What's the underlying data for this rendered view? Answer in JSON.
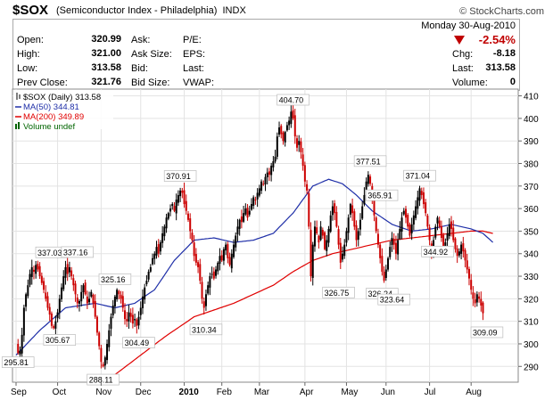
{
  "header": {
    "symbol": "$SOX",
    "name": "(Semiconductor Index - Philadelphia)",
    "exchange": "INDX",
    "site": "© StockCharts.com"
  },
  "quote": {
    "date": "Monday  30-Aug-2010",
    "change_pct": "-2.54%",
    "rows_left": [
      {
        "label": "Open:",
        "value": "320.99"
      },
      {
        "label": "High:",
        "value": "321.00"
      },
      {
        "label": "Low:",
        "value": "313.58"
      },
      {
        "label": "Prev Close:",
        "value": "321.76"
      }
    ],
    "rows_mid": [
      "Ask:",
      "Ask Size:",
      "Bid:",
      "Bid Size:"
    ],
    "rows_mid2": [
      "P/E:",
      "EPS:",
      "Last:",
      "VWAP:"
    ],
    "rows_right": [
      {
        "label": "Chg:",
        "value": "-8.18"
      },
      {
        "label": "Last:",
        "value": "313.58"
      },
      {
        "label": "Volume:",
        "value": "0"
      }
    ]
  },
  "colors": {
    "up": "#000000",
    "down": "#cc0000",
    "ma50": "#1f2fa8",
    "ma200": "#e00000",
    "grid": "#e3e3e3"
  },
  "chart_data": {
    "type": "line",
    "legend": [
      {
        "text": "$SOX (Daily) 313.58",
        "color": "#000000"
      },
      {
        "text": "MA(50) 344.81",
        "color": "#1f2fa8"
      },
      {
        "text": "MA(200) 349.89",
        "color": "#e00000"
      },
      {
        "text": "Volume undef",
        "color": "#006400"
      }
    ],
    "ylim": [
      283,
      413
    ],
    "y_ticks": [
      290,
      300,
      310,
      320,
      330,
      340,
      350,
      360,
      370,
      380,
      390,
      400,
      410
    ],
    "xlim": [
      0,
      252
    ],
    "x_ticks": [
      {
        "label": "Sep",
        "x": 0
      },
      {
        "label": "Oct",
        "x": 21
      },
      {
        "label": "Nov",
        "x": 43
      },
      {
        "label": "Dec",
        "x": 63
      },
      {
        "label": "2010",
        "x": 85,
        "bold": true
      },
      {
        "label": "Feb",
        "x": 104
      },
      {
        "label": "Mar",
        "x": 123
      },
      {
        "label": "Apr",
        "x": 146
      },
      {
        "label": "May",
        "x": 167
      },
      {
        "label": "Jun",
        "x": 187
      },
      {
        "label": "Jul",
        "x": 209
      },
      {
        "label": "Aug",
        "x": 230
      }
    ],
    "price_anchors": [
      [
        0,
        300
      ],
      [
        1,
        296
      ],
      [
        2,
        297
      ],
      [
        3,
        304
      ],
      [
        4,
        316
      ],
      [
        5,
        322
      ],
      [
        6,
        326
      ],
      [
        7,
        331
      ],
      [
        8,
        334
      ],
      [
        9,
        332
      ],
      [
        10,
        335
      ],
      [
        11,
        333
      ],
      [
        12,
        330
      ],
      [
        13,
        327
      ],
      [
        14,
        324
      ],
      [
        15,
        320
      ],
      [
        16,
        316
      ],
      [
        17,
        313
      ],
      [
        18,
        308
      ],
      [
        19,
        307
      ],
      [
        20,
        310
      ],
      [
        21,
        314
      ],
      [
        22,
        320
      ],
      [
        23,
        325
      ],
      [
        24,
        330
      ],
      [
        25,
        334
      ],
      [
        26,
        331
      ],
      [
        27,
        334
      ],
      [
        28,
        330
      ],
      [
        29,
        326
      ],
      [
        30,
        322
      ],
      [
        31,
        318
      ],
      [
        32,
        319
      ],
      [
        33,
        323
      ],
      [
        34,
        326
      ],
      [
        35,
        322
      ],
      [
        36,
        318
      ],
      [
        37,
        320
      ],
      [
        38,
        323
      ],
      [
        39,
        318
      ],
      [
        40,
        312
      ],
      [
        41,
        305
      ],
      [
        42,
        299
      ],
      [
        43,
        292
      ],
      [
        44,
        290
      ],
      [
        45,
        294
      ],
      [
        46,
        300
      ],
      [
        47,
        306
      ],
      [
        48,
        312
      ],
      [
        49,
        317
      ],
      [
        50,
        321
      ],
      [
        51,
        324
      ],
      [
        52,
        322
      ],
      [
        53,
        320
      ],
      [
        54,
        316
      ],
      [
        55,
        311
      ],
      [
        56,
        310
      ],
      [
        57,
        314
      ],
      [
        58,
        312
      ],
      [
        59,
        309
      ],
      [
        60,
        311
      ],
      [
        61,
        308
      ],
      [
        62,
        312
      ],
      [
        63,
        316
      ],
      [
        64,
        321
      ],
      [
        65,
        325
      ],
      [
        66,
        328
      ],
      [
        67,
        332
      ],
      [
        68,
        334
      ],
      [
        69,
        338
      ],
      [
        70,
        340
      ],
      [
        71,
        343
      ],
      [
        72,
        340
      ],
      [
        73,
        345
      ],
      [
        74,
        349
      ],
      [
        75,
        352
      ],
      [
        76,
        356
      ],
      [
        77,
        358
      ],
      [
        78,
        360
      ],
      [
        79,
        362
      ],
      [
        80,
        359
      ],
      [
        81,
        364
      ],
      [
        82,
        366
      ],
      [
        83,
        368
      ],
      [
        84,
        367
      ],
      [
        85,
        362
      ],
      [
        86,
        359
      ],
      [
        87,
        355
      ],
      [
        88,
        350
      ],
      [
        89,
        346
      ],
      [
        90,
        339
      ],
      [
        91,
        336
      ],
      [
        92,
        334
      ],
      [
        93,
        328
      ],
      [
        94,
        320
      ],
      [
        95,
        316
      ],
      [
        96,
        322
      ],
      [
        97,
        326
      ],
      [
        98,
        330
      ],
      [
        99,
        331
      ],
      [
        100,
        329
      ],
      [
        101,
        333
      ],
      [
        102,
        336
      ],
      [
        103,
        339
      ],
      [
        104,
        337
      ],
      [
        105,
        342
      ],
      [
        106,
        344
      ],
      [
        107,
        338
      ],
      [
        108,
        335
      ],
      [
        109,
        340
      ],
      [
        110,
        344
      ],
      [
        111,
        348
      ],
      [
        112,
        352
      ],
      [
        113,
        355
      ],
      [
        114,
        354
      ],
      [
        115,
        358
      ],
      [
        116,
        360
      ],
      [
        117,
        356
      ],
      [
        118,
        359
      ],
      [
        119,
        362
      ],
      [
        120,
        365
      ],
      [
        121,
        364
      ],
      [
        122,
        367
      ],
      [
        123,
        369
      ],
      [
        124,
        372
      ],
      [
        125,
        371
      ],
      [
        126,
        374
      ],
      [
        127,
        376
      ],
      [
        128,
        375
      ],
      [
        129,
        379
      ],
      [
        130,
        381
      ],
      [
        131,
        383
      ],
      [
        132,
        392
      ],
      [
        133,
        396
      ],
      [
        134,
        393
      ],
      [
        135,
        390
      ],
      [
        136,
        394
      ],
      [
        137,
        397
      ],
      [
        138,
        399
      ],
      [
        139,
        403
      ],
      [
        140,
        400
      ],
      [
        141,
        392
      ],
      [
        142,
        387
      ],
      [
        143,
        390
      ],
      [
        144,
        385
      ],
      [
        145,
        379
      ],
      [
        146,
        372
      ],
      [
        147,
        368
      ],
      [
        148,
        352
      ],
      [
        149,
        330
      ],
      [
        150,
        344
      ],
      [
        151,
        352
      ],
      [
        152,
        349
      ],
      [
        153,
        345
      ],
      [
        154,
        352
      ],
      [
        155,
        348
      ],
      [
        156,
        342
      ],
      [
        157,
        346
      ],
      [
        158,
        351
      ],
      [
        159,
        357
      ],
      [
        160,
        361
      ],
      [
        161,
        358
      ],
      [
        162,
        352
      ],
      [
        163,
        344
      ],
      [
        164,
        336
      ],
      [
        165,
        340
      ],
      [
        166,
        344
      ],
      [
        167,
        350
      ],
      [
        168,
        356
      ],
      [
        169,
        362
      ],
      [
        170,
        358
      ],
      [
        171,
        352
      ],
      [
        172,
        346
      ],
      [
        173,
        350
      ],
      [
        174,
        355
      ],
      [
        175,
        361
      ],
      [
        176,
        366
      ],
      [
        177,
        372
      ],
      [
        178,
        375
      ],
      [
        179,
        371
      ],
      [
        180,
        364
      ],
      [
        181,
        357
      ],
      [
        182,
        350
      ],
      [
        183,
        344
      ],
      [
        184,
        338
      ],
      [
        185,
        332
      ],
      [
        186,
        328
      ],
      [
        187,
        333
      ],
      [
        188,
        338
      ],
      [
        189,
        343
      ],
      [
        190,
        347
      ],
      [
        191,
        344
      ],
      [
        192,
        340
      ],
      [
        193,
        346
      ],
      [
        194,
        351
      ],
      [
        195,
        356
      ],
      [
        196,
        359
      ],
      [
        197,
        356
      ],
      [
        198,
        352
      ],
      [
        199,
        348
      ],
      [
        200,
        353
      ],
      [
        201,
        357
      ],
      [
        202,
        361
      ],
      [
        203,
        365
      ],
      [
        204,
        369
      ],
      [
        205,
        366
      ],
      [
        206,
        362
      ],
      [
        207,
        358
      ],
      [
        208,
        352
      ],
      [
        209,
        346
      ],
      [
        210,
        341
      ],
      [
        211,
        346
      ],
      [
        212,
        352
      ],
      [
        213,
        356
      ],
      [
        214,
        352
      ],
      [
        215,
        347
      ],
      [
        216,
        343
      ],
      [
        217,
        345
      ],
      [
        218,
        349
      ],
      [
        219,
        353
      ],
      [
        220,
        351
      ],
      [
        221,
        346
      ],
      [
        222,
        342
      ],
      [
        223,
        339
      ],
      [
        224,
        341
      ],
      [
        225,
        344
      ],
      [
        226,
        341
      ],
      [
        227,
        337
      ],
      [
        228,
        333
      ],
      [
        229,
        329
      ],
      [
        230,
        324
      ],
      [
        231,
        320
      ],
      [
        232,
        318
      ],
      [
        233,
        322
      ],
      [
        234,
        320
      ],
      [
        235,
        317
      ],
      [
        236,
        313.58
      ]
    ],
    "ma50_anchors": [
      [
        0,
        295
      ],
      [
        12,
        306
      ],
      [
        25,
        316
      ],
      [
        40,
        318
      ],
      [
        50,
        316
      ],
      [
        60,
        318
      ],
      [
        70,
        324
      ],
      [
        80,
        337
      ],
      [
        90,
        346
      ],
      [
        100,
        347
      ],
      [
        110,
        345
      ],
      [
        120,
        346
      ],
      [
        130,
        349
      ],
      [
        140,
        358
      ],
      [
        150,
        370
      ],
      [
        158,
        373
      ],
      [
        165,
        371
      ],
      [
        172,
        366
      ],
      [
        180,
        359
      ],
      [
        190,
        353
      ],
      [
        200,
        350
      ],
      [
        210,
        351
      ],
      [
        220,
        353
      ],
      [
        230,
        351
      ],
      [
        236,
        349
      ],
      [
        241,
        345
      ]
    ],
    "ma200_anchors": [
      [
        45,
        283
      ],
      [
        60,
        293
      ],
      [
        75,
        303
      ],
      [
        90,
        312
      ],
      [
        100,
        315
      ],
      [
        110,
        318
      ],
      [
        120,
        322
      ],
      [
        130,
        326
      ],
      [
        140,
        332
      ],
      [
        150,
        337
      ],
      [
        160,
        340
      ],
      [
        170,
        342
      ],
      [
        180,
        344
      ],
      [
        190,
        346
      ],
      [
        200,
        347
      ],
      [
        210,
        348
      ],
      [
        220,
        349
      ],
      [
        230,
        350
      ],
      [
        236,
        350
      ],
      [
        241,
        349
      ]
    ],
    "annotations": [
      {
        "x": 1,
        "y": 295.81,
        "text": "295.81",
        "pos": "below"
      },
      {
        "x": 18,
        "y": 337.03,
        "text": "337.03",
        "pos": "above"
      },
      {
        "x": 31,
        "y": 337.16,
        "text": "337.16",
        "pos": "above"
      },
      {
        "x": 22,
        "y": 305.67,
        "text": "305.67",
        "pos": "below"
      },
      {
        "x": 50,
        "y": 325.16,
        "text": "325.16",
        "pos": "above"
      },
      {
        "x": 44,
        "y": 288.11,
        "text": "288.11",
        "pos": "below"
      },
      {
        "x": 62,
        "y": 304.49,
        "text": "304.49",
        "pos": "below"
      },
      {
        "x": 83,
        "y": 370.91,
        "text": "370.91",
        "pos": "above"
      },
      {
        "x": 96,
        "y": 310.34,
        "text": "310.34",
        "pos": "below"
      },
      {
        "x": 140,
        "y": 404.7,
        "text": "404.70",
        "pos": "above"
      },
      {
        "x": 163,
        "y": 326.75,
        "text": "326.75",
        "pos": "below"
      },
      {
        "x": 175,
        "y": 365.91,
        "text": "365.91",
        "pos": "right"
      },
      {
        "x": 179,
        "y": 377.51,
        "text": "377.51",
        "pos": "above"
      },
      {
        "x": 185,
        "y": 326.24,
        "text": "326.24",
        "pos": "below"
      },
      {
        "x": 191,
        "y": 323.64,
        "text": "323.64",
        "pos": "below"
      },
      {
        "x": 204,
        "y": 371.04,
        "text": "371.04",
        "pos": "above"
      },
      {
        "x": 213,
        "y": 344.92,
        "text": "344.92",
        "pos": "below"
      },
      {
        "x": 238,
        "y": 309.09,
        "text": "309.09",
        "pos": "below"
      }
    ]
  }
}
